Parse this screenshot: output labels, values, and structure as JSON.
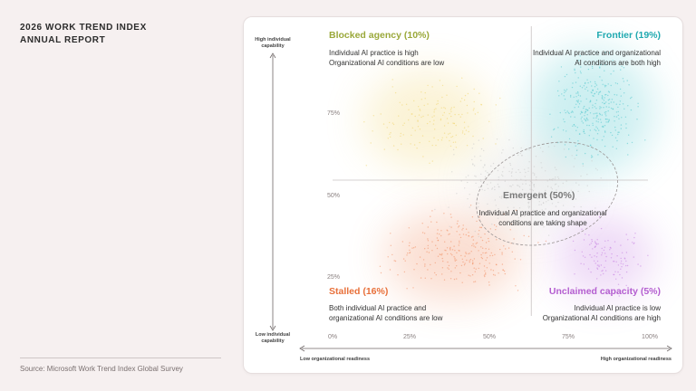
{
  "report": {
    "title_line1": "2026 WORK TREND INDEX",
    "title_line2": "ANNUAL REPORT",
    "source": "Source: Microsoft Work Trend Index Global Survey"
  },
  "axes": {
    "y_top_line1": "High individual",
    "y_top_line2": "capability",
    "y_bottom_line1": "Low individual",
    "y_bottom_line2": "capability",
    "x_left": "Low organizational readiness",
    "x_right": "High organizational readiness",
    "y_ticks": [
      "75%",
      "50%",
      "25%"
    ],
    "x_ticks": [
      "0%",
      "25%",
      "50%",
      "75%",
      "100%"
    ]
  },
  "quadrants": {
    "blocked": {
      "title": "Blocked agency (10%)",
      "line1": "Individual AI practice is high",
      "line2": "Organizational AI conditions are low",
      "color": "#9aa83a"
    },
    "frontier": {
      "title": "Frontier (19%)",
      "line1": "Individual AI practice and organizational",
      "line2": "AI conditions are both high",
      "color": "#1fa9b0"
    },
    "emergent": {
      "title": "Emergent (50%)",
      "line1": "Individual AI practice and organizational",
      "line2": "conditions are taking shape",
      "color": "#7a7a7a"
    },
    "stalled": {
      "title": "Stalled (16%)",
      "line1": "Both individual AI practice and",
      "line2": "organizational AI conditions are low",
      "color": "#e8703a"
    },
    "unclaimed": {
      "title": "Unclaimed capacity (5%)",
      "line1": "Individual AI practice is low",
      "line2": "Organizational AI conditions are high",
      "color": "#b45ed0"
    }
  },
  "chart_data": {
    "type": "scatter",
    "xlabel": "Organizational readiness",
    "ylabel": "Individual capability",
    "x_ticks": [
      "0%",
      "25%",
      "50%",
      "75%",
      "100%"
    ],
    "y_ticks": [
      "25%",
      "50%",
      "75%"
    ],
    "xlim": [
      0,
      100
    ],
    "ylim": [
      0,
      100
    ],
    "dividers": {
      "x": 63,
      "y": 50
    },
    "segments": [
      {
        "name": "Blocked agency",
        "share": 10,
        "color": "#f0d36a"
      },
      {
        "name": "Frontier",
        "share": 19,
        "color": "#4ec6cc"
      },
      {
        "name": "Emergent",
        "share": 50,
        "color": "#c9c9c9"
      },
      {
        "name": "Stalled",
        "share": 16,
        "color": "#f08a5c"
      },
      {
        "name": "Unclaimed capacity",
        "share": 5,
        "color": "#c27ae0"
      }
    ],
    "emergent_ellipse": {
      "cx": 68,
      "cy": 45,
      "rx": 23,
      "ry": 18
    }
  }
}
